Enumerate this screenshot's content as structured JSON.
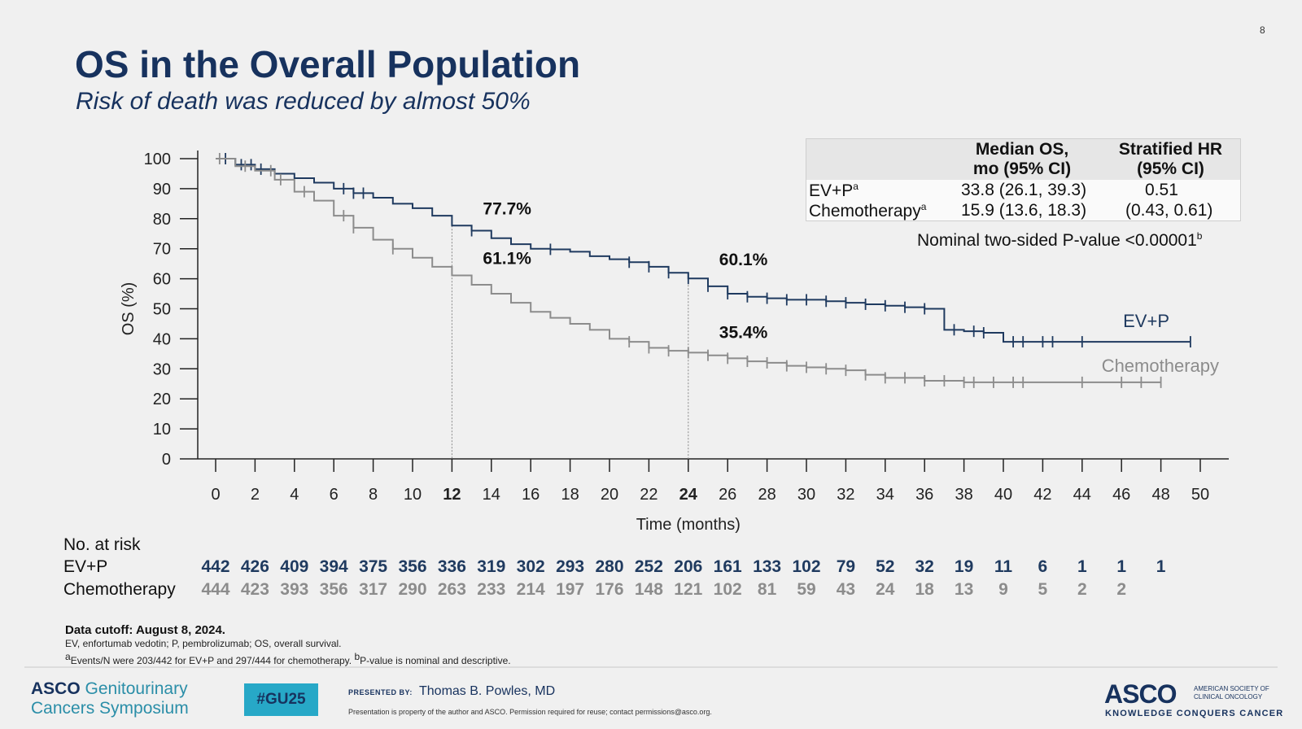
{
  "page_number": "8",
  "slide_title": "OS in the Overall Population",
  "slide_subtitle": "Risk of death was reduced by almost 50%",
  "stats_table": {
    "col1_header_line1": "Median OS,",
    "col1_header_line2": "mo (95% CI)",
    "col2_header_line1": "Stratified HR",
    "col2_header_line2": "(95% CI)",
    "row1_label": "EV+P",
    "row1_label_sup": "a",
    "row1_median": "33.8 (26.1, 39.3)",
    "row1_hr": "0.51",
    "row2_label": "Chemotherapy",
    "row2_label_sup": "a",
    "row2_median": "15.9 (13.6, 18.3)",
    "row2_hr": "(0.43, 0.61)"
  },
  "pvalue_text": "Nominal two-sided P-value <0.00001",
  "pvalue_sup": "b",
  "chart_data": {
    "type": "line",
    "xlabel": "Time (months)",
    "ylabel": "OS (%)",
    "xlim": [
      0,
      50
    ],
    "ylim": [
      0,
      100
    ],
    "x_ticks": [
      0,
      2,
      4,
      6,
      8,
      10,
      12,
      14,
      16,
      18,
      20,
      22,
      24,
      26,
      28,
      30,
      32,
      34,
      36,
      38,
      40,
      42,
      44,
      46,
      48,
      50
    ],
    "x_ticks_bold": [
      12,
      24
    ],
    "y_ticks": [
      0,
      10,
      20,
      30,
      40,
      50,
      60,
      70,
      80,
      90,
      100
    ],
    "grid": false,
    "legend": "inline labels at right",
    "colors": {
      "evp": "#1f3a5f",
      "chemo": "#8c8c8c"
    },
    "series": [
      {
        "name": "EV+P",
        "points": [
          [
            0,
            100
          ],
          [
            1,
            98
          ],
          [
            2,
            96.5
          ],
          [
            3,
            95
          ],
          [
            4,
            93.5
          ],
          [
            5,
            92
          ],
          [
            6,
            90
          ],
          [
            7,
            88.5
          ],
          [
            8,
            87
          ],
          [
            9,
            85
          ],
          [
            10,
            83.5
          ],
          [
            11,
            81
          ],
          [
            12,
            77.7
          ],
          [
            13,
            76
          ],
          [
            14,
            73.5
          ],
          [
            15,
            71.5
          ],
          [
            16,
            70
          ],
          [
            17,
            69.8
          ],
          [
            18,
            69
          ],
          [
            19,
            67.5
          ],
          [
            20,
            66.5
          ],
          [
            21,
            65.5
          ],
          [
            22,
            64
          ],
          [
            23,
            62
          ],
          [
            24,
            60.1
          ],
          [
            25,
            57.5
          ],
          [
            26,
            55
          ],
          [
            27,
            54
          ],
          [
            28,
            53.5
          ],
          [
            29,
            53
          ],
          [
            30,
            53
          ],
          [
            31,
            52.5
          ],
          [
            32,
            52
          ],
          [
            33,
            51.5
          ],
          [
            34,
            51
          ],
          [
            35,
            50.5
          ],
          [
            36,
            50
          ],
          [
            37,
            43
          ],
          [
            38,
            42.5
          ],
          [
            39,
            42
          ],
          [
            40,
            39
          ],
          [
            41,
            39
          ],
          [
            42,
            39
          ],
          [
            44,
            39
          ],
          [
            46,
            39
          ],
          [
            48,
            39
          ],
          [
            49.5,
            39
          ]
        ],
        "censor_x": [
          0.5,
          1.3,
          1.8,
          2.3,
          6.5,
          7,
          7.5,
          13,
          17,
          21,
          22,
          23,
          24,
          25,
          26,
          27,
          28,
          29,
          30,
          31,
          32,
          33,
          34,
          35,
          36,
          37.5,
          38.5,
          39,
          40.5,
          41,
          42,
          42.5,
          44,
          49.5
        ]
      },
      {
        "name": "Chemotherapy",
        "points": [
          [
            0,
            100
          ],
          [
            1,
            97.5
          ],
          [
            2,
            96
          ],
          [
            3,
            93
          ],
          [
            4,
            89
          ],
          [
            5,
            86
          ],
          [
            6,
            81
          ],
          [
            7,
            77
          ],
          [
            8,
            73
          ],
          [
            9,
            70
          ],
          [
            10,
            67
          ],
          [
            11,
            64
          ],
          [
            12,
            61.1
          ],
          [
            13,
            58
          ],
          [
            14,
            55
          ],
          [
            15,
            52
          ],
          [
            16,
            49
          ],
          [
            17,
            47
          ],
          [
            18,
            45
          ],
          [
            19,
            43
          ],
          [
            20,
            40
          ],
          [
            21,
            39
          ],
          [
            22,
            37
          ],
          [
            23,
            36
          ],
          [
            24,
            35.4
          ],
          [
            25,
            34.5
          ],
          [
            26,
            33.5
          ],
          [
            27,
            32.5
          ],
          [
            28,
            32
          ],
          [
            29,
            31
          ],
          [
            30,
            30.5
          ],
          [
            31,
            30
          ],
          [
            32,
            29.5
          ],
          [
            33,
            28
          ],
          [
            34,
            27
          ],
          [
            35,
            27
          ],
          [
            36,
            26
          ],
          [
            38,
            25.5
          ],
          [
            40,
            25.5
          ],
          [
            42,
            25.5
          ],
          [
            44,
            25.5
          ],
          [
            46,
            25.5
          ],
          [
            48,
            25.5
          ]
        ],
        "censor_x": [
          0.2,
          1.5,
          2.8,
          3.3,
          4.5,
          6.5,
          7,
          9,
          21,
          22,
          23,
          24,
          25,
          26,
          27,
          28,
          29,
          30,
          31,
          32,
          33,
          34,
          35,
          36,
          37,
          38,
          38.5,
          39.5,
          40.5,
          41,
          44,
          46,
          47,
          48
        ]
      }
    ],
    "annotations": [
      {
        "x": 12,
        "y": 77.7,
        "text": "77.7%"
      },
      {
        "x": 12,
        "y": 61.1,
        "text": "61.1%"
      },
      {
        "x": 24,
        "y": 60.1,
        "text": "60.1%"
      },
      {
        "x": 24,
        "y": 35.4,
        "text": "35.4%"
      }
    ],
    "series_labels": [
      {
        "text": "EV+P",
        "series": "EV+P"
      },
      {
        "text": "Chemotherapy",
        "series": "Chemotherapy"
      }
    ]
  },
  "risk_table": {
    "title": "No. at risk",
    "rows": [
      {
        "label": "EV+P",
        "values": [
          "442",
          "426",
          "409",
          "394",
          "375",
          "356",
          "336",
          "319",
          "302",
          "293",
          "280",
          "252",
          "206",
          "161",
          "133",
          "102",
          "79",
          "52",
          "32",
          "19",
          "11",
          "6",
          "1",
          "1",
          "1"
        ]
      },
      {
        "label": "Chemotherapy",
        "values": [
          "444",
          "423",
          "393",
          "356",
          "317",
          "290",
          "263",
          "233",
          "214",
          "197",
          "176",
          "148",
          "121",
          "102",
          "81",
          "59",
          "43",
          "24",
          "18",
          "13",
          "9",
          "5",
          "2",
          "2"
        ]
      }
    ]
  },
  "footnotes": {
    "cutoff": "Data cutoff: August 8, 2024.",
    "abbrev": "EV, enfortumab vedotin; P, pembrolizumab; OS, overall survival.",
    "sup_a": "a",
    "events_text": "Events/N were 203/442 for EV+P and 297/444 for chemotherapy. ",
    "sup_b": "b",
    "pvalue_note": "P-value is nominal and descriptive."
  },
  "footer": {
    "brand_asco": "ASCO",
    "brand_line1": "Genitourinary",
    "brand_line2": "Cancers Symposium",
    "hashtag": "#GU25",
    "presented_by_label": "PRESENTED BY:",
    "presenter": "Thomas B. Powles, MD",
    "property_note": "Presentation is property of the author and ASCO. Permission required for reuse; contact permissions@asco.org.",
    "asco_logo": "ASCO",
    "asco_org_line1": "AMERICAN SOCIETY OF",
    "asco_org_line2": "CLINICAL ONCOLOGY",
    "asco_tagline": "KNOWLEDGE CONQUERS CANCER"
  }
}
